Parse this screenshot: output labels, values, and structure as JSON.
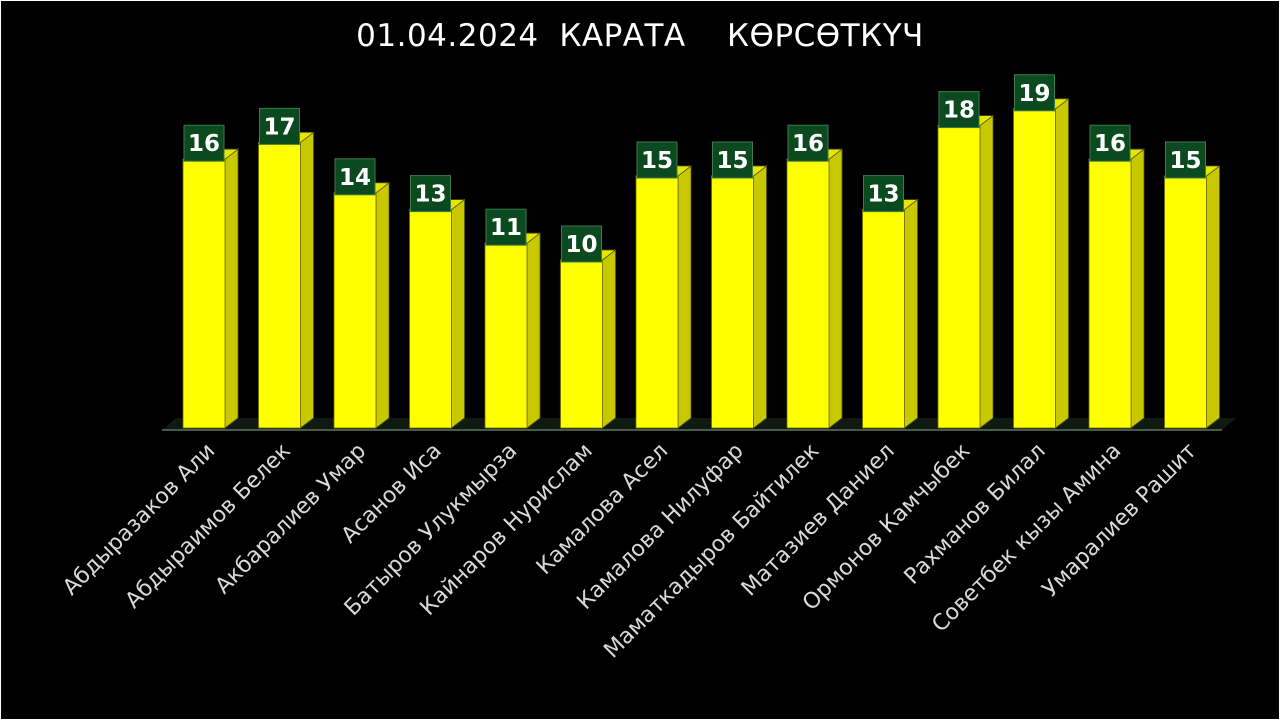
{
  "chart_data": {
    "type": "bar",
    "title": "01.04.2024  КАРАТА    КӨРСӨТКҮЧ",
    "categories": [
      "Абдыразаков Али",
      "Абдыраимов Белек",
      "Акбаралиев Умар",
      "Асанов Иса",
      "Батыров Улукмырза",
      "Кайнаров Нурислам",
      "Камалова Асел",
      "Камалова Нилуфар",
      "Маматкадыров Байтилек",
      "Матазиев Даниел",
      "Ормонов Камчыбек",
      "Рахманов Билал",
      "Советбек кызы Амина",
      "Умаралиев Рашит"
    ],
    "values": [
      16,
      17,
      14,
      13,
      11,
      10,
      15,
      15,
      16,
      13,
      18,
      19,
      16,
      15
    ],
    "ylim": [
      0,
      19
    ],
    "grid": false,
    "legend": "none",
    "colors": {
      "background": "#000000",
      "bar_front": "#ffff00",
      "bar_side": "#c8c800",
      "bar_top": "#e6e600",
      "label_box": "#0b4a1e",
      "label_text": "#ffffff",
      "category_text": "#d9d9d9",
      "title_text": "#ffffff"
    }
  }
}
